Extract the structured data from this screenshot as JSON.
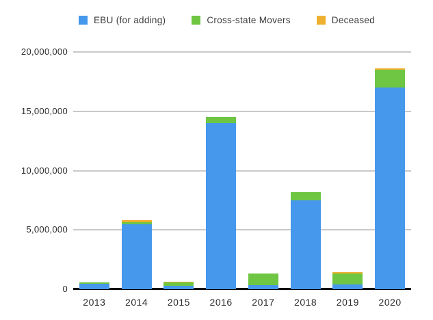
{
  "legend": {
    "items": [
      {
        "label": "EBU (for adding)",
        "color": "#4598EC"
      },
      {
        "label": "Cross-state Movers",
        "color": "#6EC643"
      },
      {
        "label": "Deceased",
        "color": "#EEB02E"
      }
    ]
  },
  "colors": {
    "grid": "#c9c9c9",
    "baseline": "#000000",
    "axis_text": "#2b2b2b",
    "background": "#ffffff"
  },
  "chart_data": {
    "type": "bar",
    "stacked": true,
    "title": "",
    "xlabel": "",
    "ylabel": "",
    "categories": [
      "2013",
      "2014",
      "2015",
      "2016",
      "2017",
      "2018",
      "2019",
      "2020"
    ],
    "series": [
      {
        "name": "EBU (for adding)",
        "color": "#4598EC",
        "values": [
          450000,
          5450000,
          300000,
          14000000,
          350000,
          7500000,
          400000,
          17000000
        ]
      },
      {
        "name": "Cross-state Movers",
        "color": "#6EC643",
        "values": [
          100000,
          180000,
          270000,
          500000,
          950000,
          700000,
          950000,
          1500000
        ]
      },
      {
        "name": "Deceased",
        "color": "#EEB02E",
        "values": [
          0,
          170000,
          90000,
          0,
          0,
          0,
          100000,
          120000
        ]
      }
    ],
    "ylim": [
      0,
      20000000
    ],
    "ytick_interval": 5000000,
    "ytick_labels": [
      "0",
      "5,000,000",
      "10,000,000",
      "15,000,000",
      "20,000,000"
    ],
    "grid": true,
    "legend_position": "top"
  }
}
